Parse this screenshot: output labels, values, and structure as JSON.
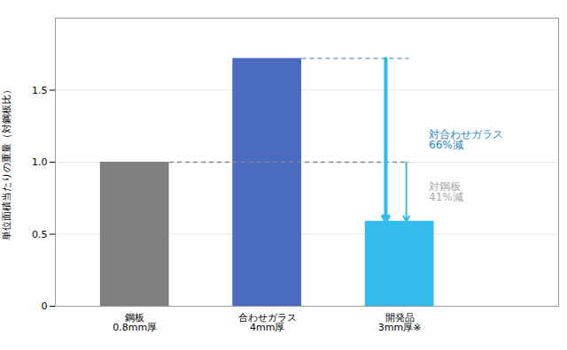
{
  "chart_data": {
    "type": "bar",
    "categories": [
      "鋼板\n0.8mm厚",
      "合わせガラス\n4mm厚",
      "開発品\n3mm厚※"
    ],
    "values": [
      1.0,
      1.72,
      0.59
    ],
    "colors": [
      "#7f7f7f",
      "#4a6bbf",
      "#33bbee"
    ],
    "ylabel": "単位面積当たりの重量（対鋼板比）",
    "ylim": [
      0,
      2.0
    ],
    "yticks": [
      0,
      0.5,
      {
        "value": 1.0,
        "label": "1.0"
      },
      1.5
    ],
    "grid": true,
    "reference_lines": [
      {
        "y": 1.72,
        "color": "#5599cc"
      },
      {
        "y": 1.0,
        "color": "#888888"
      }
    ],
    "annotations": [
      {
        "text": "対合わせガラス\n66%減",
        "color": "#2288cc"
      },
      {
        "text": "対鋼板\n41%減",
        "color": "#aaaaaa"
      }
    ]
  }
}
